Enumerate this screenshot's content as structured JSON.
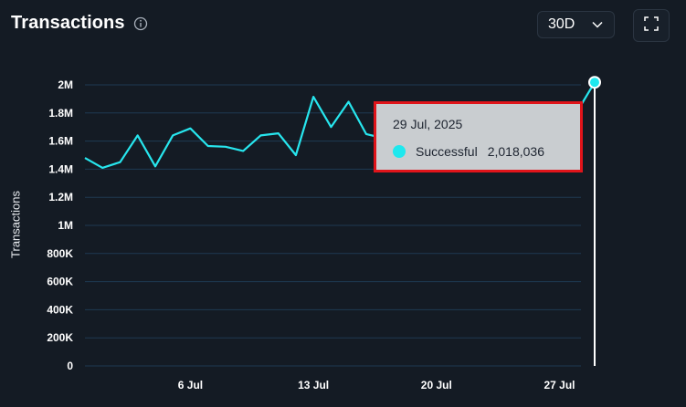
{
  "header": {
    "title": "Transactions",
    "info_icon": "info-circle-icon"
  },
  "controls": {
    "range_value": "30D",
    "range_icon": "chevron-down-icon",
    "expand_icon": "fullscreen-icon"
  },
  "tooltip": {
    "date": "29 Jul, 2025",
    "series_name": "Successful",
    "value": "2,018,036",
    "color": "#1ee8ee"
  },
  "colors": {
    "line": "#27e6ee",
    "grid": "#1e3a52",
    "background": "#141b24"
  },
  "chart_data": {
    "type": "line",
    "ylabel": "Transactions",
    "ylim": [
      0,
      2000000
    ],
    "y_ticks": [
      0,
      200000,
      400000,
      600000,
      800000,
      1000000,
      1200000,
      1400000,
      1600000,
      1800000,
      2000000
    ],
    "y_tick_labels": [
      "0",
      "200K",
      "400K",
      "600K",
      "800K",
      "1M",
      "1.2M",
      "1.4M",
      "1.6M",
      "1.8M",
      "2M"
    ],
    "x_tick_labels": [
      "6 Jul",
      "13 Jul",
      "20 Jul",
      "27 Jul"
    ],
    "x_tick_dates": [
      "2025-07-06",
      "2025-07-13",
      "2025-07-20",
      "2025-07-27"
    ],
    "grid": true,
    "series": [
      {
        "name": "Successful",
        "x": [
          "2025-06-30",
          "2025-07-01",
          "2025-07-02",
          "2025-07-03",
          "2025-07-04",
          "2025-07-05",
          "2025-07-06",
          "2025-07-07",
          "2025-07-08",
          "2025-07-09",
          "2025-07-10",
          "2025-07-11",
          "2025-07-12",
          "2025-07-13",
          "2025-07-14",
          "2025-07-15",
          "2025-07-16",
          "2025-07-17",
          "2025-07-18",
          "2025-07-19",
          "2025-07-20",
          "2025-07-21",
          "2025-07-22",
          "2025-07-23",
          "2025-07-24",
          "2025-07-25",
          "2025-07-26",
          "2025-07-27",
          "2025-07-28",
          "2025-07-29"
        ],
        "values": [
          1480000,
          1410000,
          1450000,
          1640000,
          1420000,
          1640000,
          1690000,
          1565000,
          1560000,
          1530000,
          1640000,
          1655000,
          1500000,
          1915000,
          1700000,
          1880000,
          1650000,
          1620000,
          1580000,
          1500000,
          1560000,
          1600000,
          1650000,
          1620000,
          1600000,
          1650000,
          1700000,
          1650000,
          1810000,
          2018036
        ]
      }
    ]
  }
}
